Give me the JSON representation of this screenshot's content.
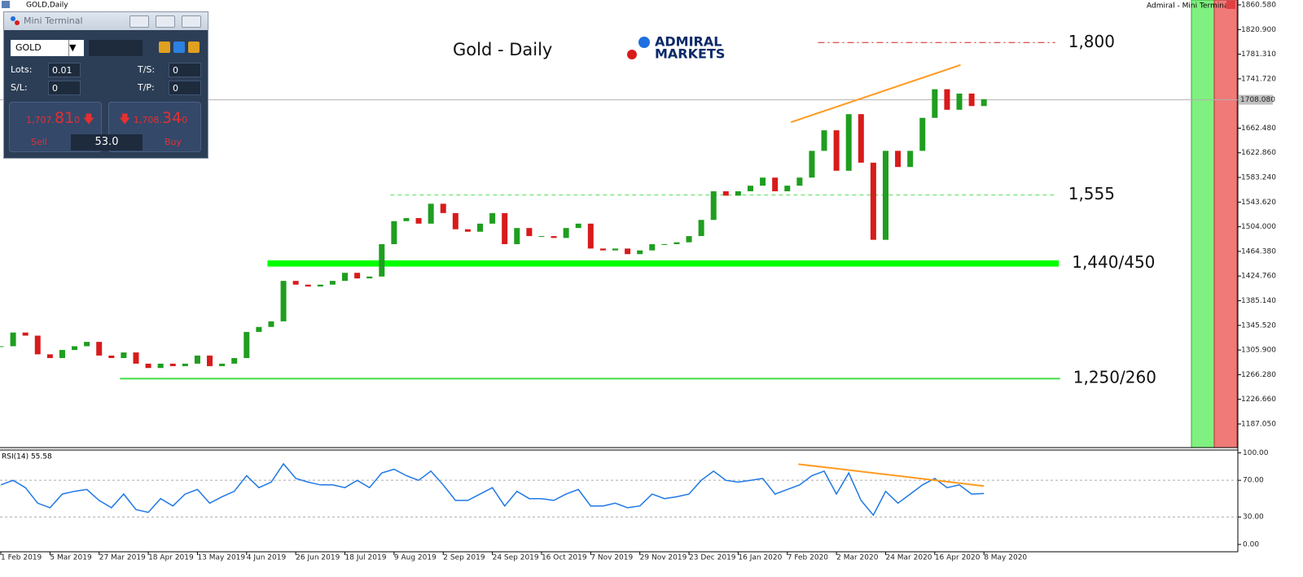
{
  "window_title": "GOLD,Daily",
  "terminal_caption": "Admiral - Mini Terminal",
  "logo": {
    "line1": "ADMIRAL",
    "line2": "MARKETS"
  },
  "mini_terminal": {
    "title": "Mini Terminal",
    "symbol": "GOLD",
    "fields": [
      {
        "label": "Lots:",
        "value": "0.01"
      },
      {
        "label": "T/S:",
        "value": "0"
      },
      {
        "label": "S/L:",
        "value": "0"
      },
      {
        "label": "T/P:",
        "value": "0"
      }
    ],
    "sell": {
      "head": "1,707.",
      "big": "81",
      "tail": "0",
      "label": "Sell"
    },
    "buy": {
      "head": "1,708.",
      "big": "34",
      "tail": "0",
      "label": "Buy"
    },
    "volume": "53.0"
  },
  "chart_data": [
    {
      "type": "candlestick",
      "title": "Gold - Daily",
      "categories": [
        "1 Feb 2019",
        null,
        null,
        null,
        "5 Mar 2019",
        null,
        null,
        null,
        "27 Mar 2019",
        null,
        null,
        null,
        "18 Apr 2019",
        null,
        null,
        null,
        "13 May 2019",
        null,
        null,
        null,
        "4 Jun 2019",
        null,
        null,
        null,
        "26 Jun 2019",
        null,
        null,
        null,
        "18 Jul 2019",
        null,
        null,
        null,
        "9 Aug 2019",
        null,
        null,
        null,
        "2 Sep 2019",
        null,
        null,
        null,
        "24 Sep 2019",
        null,
        null,
        null,
        "16 Oct 2019",
        null,
        null,
        null,
        "7 Nov 2019",
        null,
        null,
        null,
        "29 Nov 2019",
        null,
        null,
        null,
        "23 Dec 2019",
        null,
        null,
        null,
        "16 Jan 2020",
        null,
        null,
        null,
        "7 Feb 2020",
        null,
        null,
        null,
        "2 Mar 2020",
        null,
        null,
        null,
        "24 Mar 2020",
        null,
        null,
        null,
        "16 Apr 2020",
        null,
        null,
        null,
        "8 May 2020"
      ],
      "series": [
        {
          "name": "GOLD",
          "up_color": "#1f9e1f",
          "down_color": "#d81b1b",
          "values": [
            1312,
            1334,
            1329,
            1299,
            1293,
            1306,
            1312,
            1319,
            1297,
            1293,
            1302,
            1284,
            1277,
            1284,
            1280,
            1284,
            1297,
            1280,
            1284,
            1293,
            1335,
            1343,
            1352,
            1417,
            1411,
            1408,
            1411,
            1417,
            1430,
            1421,
            1424,
            1476,
            1513,
            1518,
            1509,
            1541,
            1526,
            1500,
            1496,
            1509,
            1526,
            1476,
            1502,
            1489,
            1489,
            1486,
            1502,
            1509,
            1469,
            1466,
            1469,
            1460,
            1466,
            1476,
            1476,
            1479,
            1489,
            1515,
            1561,
            1554,
            1561,
            1570,
            1583,
            1561,
            1570,
            1583,
            1626,
            1659,
            1594,
            1685,
            1607,
            1483,
            1626,
            1600,
            1626,
            1679,
            1725,
            1692,
            1718,
            1698,
            1709
          ]
        }
      ],
      "ylim": [
        1149.1,
        1868.4
      ],
      "yticks": [
        {
          "value": 1860.58,
          "label": "1860.580"
        },
        {
          "value": 1820.9,
          "label": "1820.900"
        },
        {
          "value": 1781.31,
          "label": "1781.310"
        },
        {
          "value": 1741.72,
          "label": "1741.720"
        },
        {
          "value": 1662.48,
          "label": "1662.480"
        },
        {
          "value": 1622.86,
          "label": "1622.860"
        },
        {
          "value": 1583.24,
          "label": "1583.240"
        },
        {
          "value": 1543.62,
          "label": "1543.620"
        },
        {
          "value": 1504,
          "label": "1504.000"
        },
        {
          "value": 1464.38,
          "label": "1464.380"
        },
        {
          "value": 1424.76,
          "label": "1424.760"
        },
        {
          "value": 1385.14,
          "label": "1385.140"
        },
        {
          "value": 1345.52,
          "label": "1345.520"
        },
        {
          "value": 1305.9,
          "label": "1305.900"
        },
        {
          "value": 1266.28,
          "label": "1266.280"
        },
        {
          "value": 1226.66,
          "label": "1226.660"
        },
        {
          "value": 1187.05,
          "label": "1187.050"
        }
      ],
      "last_price": {
        "value": 1708.08,
        "label": "1708.080"
      },
      "levels": [
        {
          "label": "1,800",
          "value": 1800,
          "from": 66.5,
          "to": 85.8,
          "color": "#d81b1b",
          "style": "dashdot",
          "width": 1
        },
        {
          "label": "1,555",
          "value": 1555,
          "from": 31.7,
          "to": 85.8,
          "color": "#55dd55",
          "style": "dash",
          "width": 1
        },
        {
          "label": "1,440/450",
          "low": 1440,
          "high": 1450,
          "from": 21.7,
          "to": 86.1,
          "color": "#00ff00",
          "style": "band"
        },
        {
          "label": "1,250/260",
          "value": 1260,
          "from": 9.7,
          "to": 86.2,
          "color": "#44dd44",
          "style": "solid",
          "width": 2
        }
      ],
      "trendline": {
        "x": [
          64.3,
          78.1
        ],
        "y": [
          1672,
          1764
        ],
        "color": "#ff9a1f"
      }
    },
    {
      "type": "line",
      "title": "RSI(14) 55.58",
      "series": [
        {
          "name": "RSI(14)",
          "color": "#1e78e6",
          "values": [
            65,
            70,
            62,
            45,
            40,
            55,
            58,
            60,
            48,
            40,
            55,
            38,
            35,
            50,
            42,
            55,
            60,
            45,
            52,
            58,
            75,
            62,
            68,
            88,
            72,
            68,
            65,
            65,
            62,
            70,
            62,
            78,
            82,
            75,
            70,
            80,
            65,
            48,
            48,
            55,
            62,
            42,
            58,
            50,
            50,
            48,
            55,
            60,
            42,
            42,
            45,
            40,
            42,
            55,
            50,
            52,
            55,
            70,
            80,
            70,
            68,
            70,
            72,
            55,
            60,
            65,
            75,
            80,
            55,
            78,
            48,
            32,
            58,
            45,
            55,
            65,
            72,
            62,
            65,
            55,
            55.58
          ]
        }
      ],
      "ylim": [
        -8,
        103
      ],
      "yticks": [
        {
          "value": 100,
          "label": "100.00"
        },
        {
          "value": 70,
          "label": "70.00"
        },
        {
          "value": 30,
          "label": "30.00"
        },
        {
          "value": 0,
          "label": "0.00"
        }
      ],
      "grid_levels": [
        70,
        30
      ],
      "trendline": {
        "x": [
          64.9,
          80
        ],
        "y": [
          87.6,
          63.7
        ],
        "color": "#ff9a1f"
      }
    }
  ]
}
